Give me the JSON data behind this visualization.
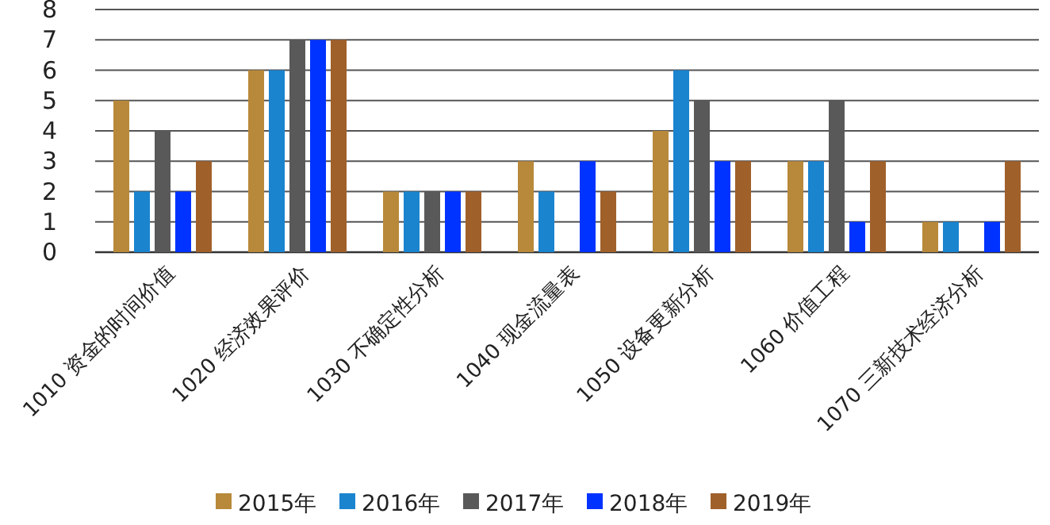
{
  "chart_data": {
    "type": "bar",
    "categories": [
      "1010 资金的时间价值",
      "1020 经济效果评价",
      "1030 不确定性分析",
      "1040 现金流量表",
      "1050 设备更新分析",
      "1060 价值工程",
      "1070 三新技术经济分析"
    ],
    "series": [
      {
        "name": "2015年",
        "color": "#b8893a",
        "values": [
          5,
          6,
          2,
          3,
          4,
          3,
          1
        ]
      },
      {
        "name": "2016年",
        "color": "#1a84cf",
        "values": [
          2,
          6,
          2,
          2,
          6,
          3,
          1
        ]
      },
      {
        "name": "2017年",
        "color": "#595959",
        "values": [
          4,
          7,
          2,
          0,
          5,
          5,
          0
        ]
      },
      {
        "name": "2018年",
        "color": "#0033ff",
        "values": [
          2,
          7,
          2,
          3,
          3,
          1,
          1
        ]
      },
      {
        "name": "2019年",
        "color": "#a0602a",
        "values": [
          3,
          7,
          2,
          2,
          3,
          3,
          3
        ]
      }
    ],
    "ylim": [
      0,
      8
    ],
    "yticks": [
      0,
      1,
      2,
      3,
      4,
      5,
      6,
      7,
      8
    ],
    "grid": "y",
    "legend": "bottom"
  }
}
